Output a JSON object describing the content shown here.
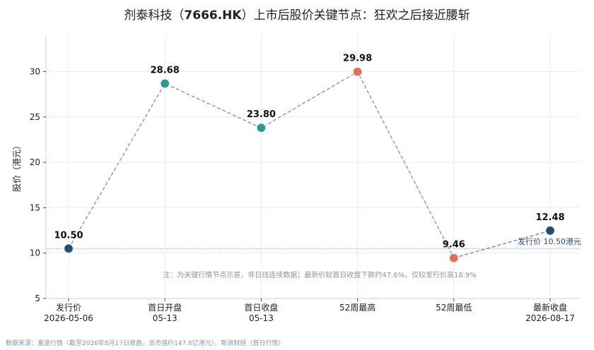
{
  "chart_data": {
    "type": "line",
    "title_prefix": "剂泰科技（",
    "title_code": "7666.HK",
    "title_suffix": "）上市后股价关键节点：狂欢之后接近腰斩",
    "ylabel": "股价（港元）",
    "ylim": [
      5,
      34
    ],
    "yticks": [
      5,
      10,
      15,
      20,
      25,
      30
    ],
    "grid": true,
    "categories": [
      {
        "name": "发行价",
        "date": "2026-05-06"
      },
      {
        "name": "首日开盘",
        "date": "05-13"
      },
      {
        "name": "首日收盘",
        "date": "05-13"
      },
      {
        "name": "52周最高",
        "date": ""
      },
      {
        "name": "52周最低",
        "date": ""
      },
      {
        "name": "最新收盘",
        "date": "2026-08-17"
      }
    ],
    "series": [
      {
        "values": [
          10.5,
          28.68,
          23.8,
          29.98,
          9.46,
          12.48
        ],
        "labels": [
          "10.50",
          "28.68",
          "23.80",
          "29.98",
          "9.46",
          "12.48"
        ],
        "point_colors": [
          "#1f4e79",
          "#2a9d8f",
          "#2a9d8f",
          "#e76f51",
          "#e76f51",
          "#1f4e79"
        ]
      }
    ],
    "reference_line": {
      "value": 10.5,
      "label": "发行价 10.50港元"
    },
    "annotation": "注：为关键行情节点示意，非日线连续数据；最新价较首日收盘下跌约47.6%，仅较发行价高18.9%",
    "source": "数据来源：富途行情（截至2026年8月17日收盘，总市值约147.6亿港元）、新浪财经（首日行情）"
  }
}
